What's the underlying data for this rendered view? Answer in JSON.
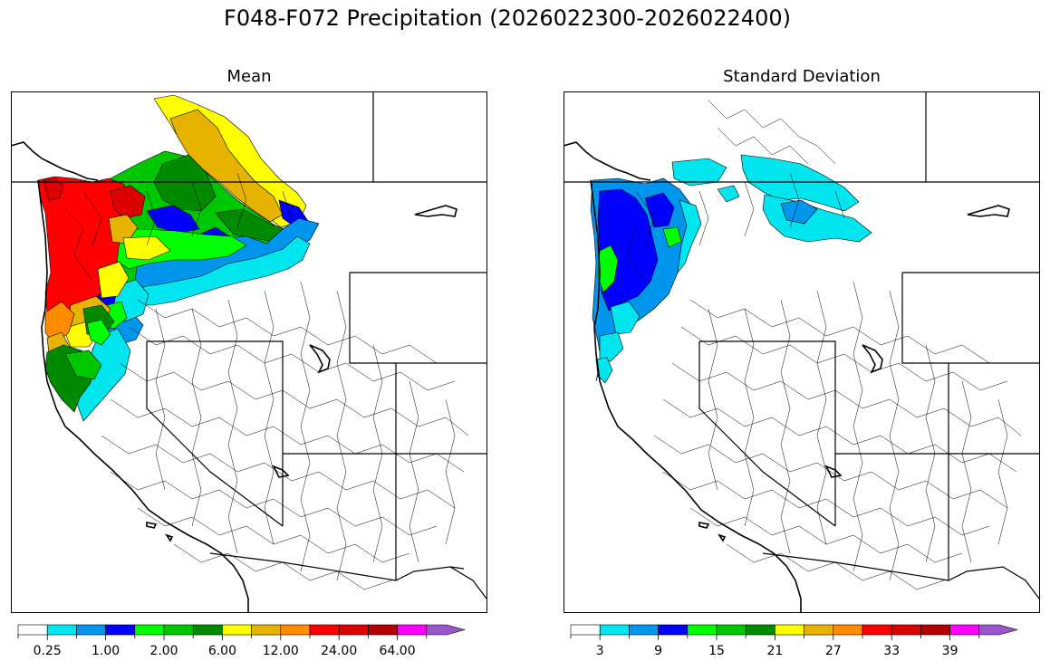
{
  "title": "F048-F072 Precipitation (2026022300-2026022400)",
  "panels": [
    {
      "id": "mean",
      "title": "Mean",
      "colorbar": {
        "colors": [
          "#ffffff",
          "#00e5ee",
          "#0096ee",
          "#0000ff",
          "#00ff00",
          "#00c800",
          "#008a00",
          "#ffff00",
          "#e6b400",
          "#ff8c00",
          "#ff0000",
          "#dc0000",
          "#b40000",
          "#ff00ff",
          "#9955cc"
        ],
        "tick_labels": [
          "0.25",
          "1.00",
          "2.00",
          "6.00",
          "12.00",
          "24.00",
          "64.00"
        ],
        "extend": "max"
      }
    },
    {
      "id": "stddev",
      "title": "Standard Deviation",
      "colorbar": {
        "colors": [
          "#ffffff",
          "#00e5ee",
          "#0096ee",
          "#0000ff",
          "#00ff00",
          "#00c800",
          "#008a00",
          "#ffff00",
          "#e6b400",
          "#ff8c00",
          "#ff0000",
          "#dc0000",
          "#b40000",
          "#ff00ff",
          "#9955cc"
        ],
        "tick_labels": [
          "3",
          "9",
          "15",
          "21",
          "27",
          "33",
          "39"
        ],
        "extend": "max"
      }
    }
  ]
}
